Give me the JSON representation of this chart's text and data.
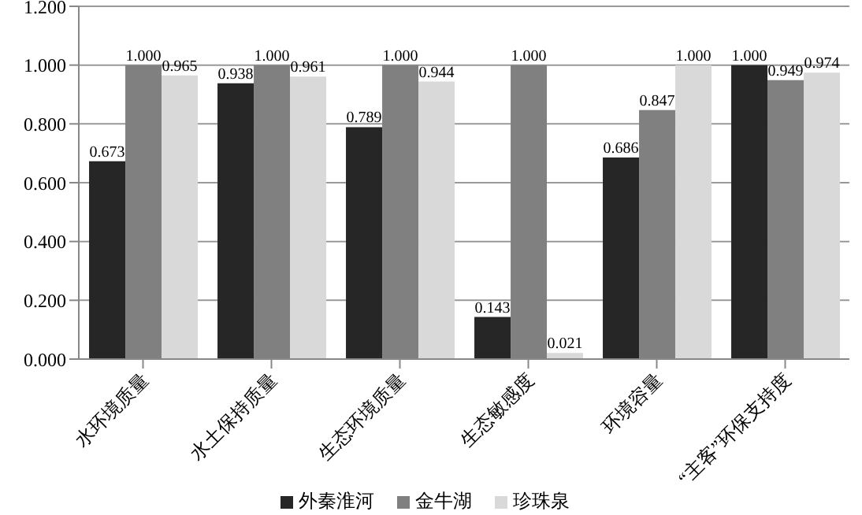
{
  "chart_data": {
    "type": "bar",
    "categories": [
      "水环境质量",
      "水土保持质量",
      "生态环境质量",
      "生态敏感度",
      "环境容量",
      "“主客”环保支持度"
    ],
    "series": [
      {
        "name": "外秦淮河",
        "color": "#262626",
        "values": [
          0.673,
          0.938,
          0.789,
          0.143,
          0.686,
          1.0
        ],
        "value_labels": [
          "0.673",
          "0.938",
          "0.789",
          "0.143",
          "0.686",
          "1.000"
        ]
      },
      {
        "name": "金牛湖",
        "color": "#808080",
        "values": [
          1.0,
          1.0,
          1.0,
          1.0,
          0.847,
          0.949
        ],
        "value_labels": [
          "1.000",
          "1.000",
          "1.000",
          "1.000",
          "0.847",
          "0.949"
        ]
      },
      {
        "name": "珍珠泉",
        "color": "#d9d9d9",
        "values": [
          0.965,
          0.961,
          0.944,
          0.021,
          1.0,
          0.974
        ],
        "value_labels": [
          "0.965",
          "0.961",
          "0.944",
          "0.021",
          "1.000",
          "0.974"
        ]
      }
    ],
    "ylim": [
      0,
      1.2
    ],
    "yticks": [
      {
        "value": 0,
        "label": "0.000"
      },
      {
        "value": 0.2,
        "label": "0.200"
      },
      {
        "value": 0.4,
        "label": "0.400"
      },
      {
        "value": 0.6,
        "label": "0.600"
      },
      {
        "value": 0.8,
        "label": "0.800"
      },
      {
        "value": 1.0,
        "label": "1.000"
      },
      {
        "value": 1.2,
        "label": "1.200"
      }
    ],
    "grid": "y",
    "legend": "bottom"
  }
}
